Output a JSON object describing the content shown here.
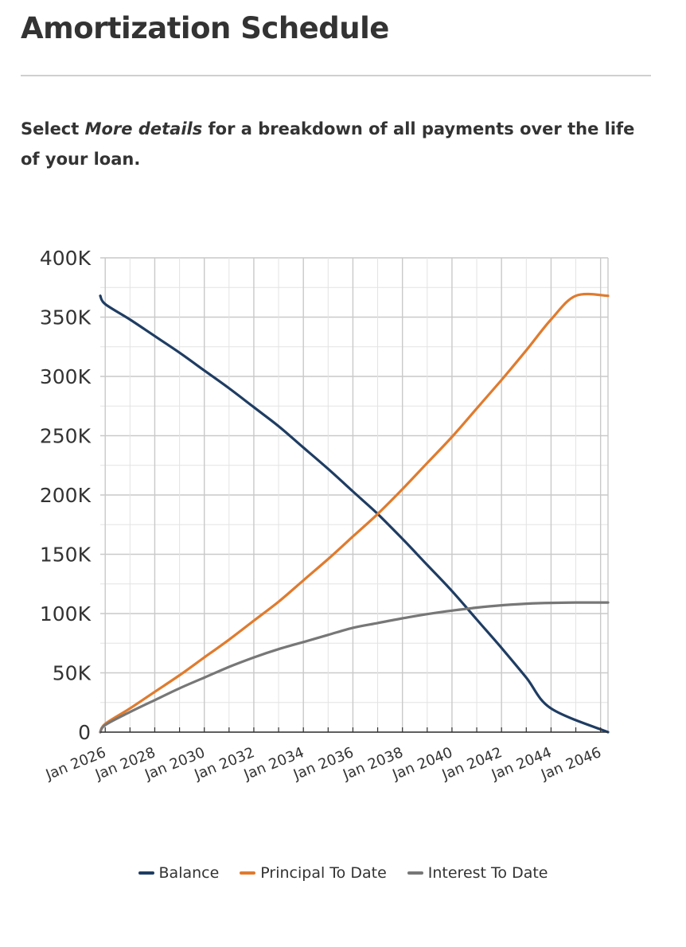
{
  "header": {
    "title": "Amortization Schedule"
  },
  "description": {
    "prefix": "Select ",
    "emphasis": "More details",
    "suffix": " for a breakdown of all payments over the life of your loan."
  },
  "chart_data": {
    "type": "line",
    "title": "",
    "xlabel": "",
    "ylabel": "",
    "x": [
      2025.8,
      2026,
      2027,
      2028,
      2029,
      2030,
      2031,
      2032,
      2033,
      2034,
      2035,
      2036,
      2037,
      2038,
      2039,
      2040,
      2041,
      2042,
      2043,
      2044,
      2045,
      2046
    ],
    "x_tick_labels": [
      "Jan 2026",
      "Jan 2028",
      "Jan 2030",
      "Jan 2032",
      "Jan 2034",
      "Jan 2036",
      "Jan 2038",
      "Jan 2040",
      "Jan 2042",
      "Jan 2044",
      "Jan 2046"
    ],
    "x_tick_values": [
      2026,
      2028,
      2030,
      2032,
      2034,
      2036,
      2038,
      2040,
      2042,
      2044,
      2046
    ],
    "xlim": [
      2025.8,
      2046.3
    ],
    "ylim": [
      0,
      400000
    ],
    "y_tick_values": [
      0,
      50000,
      100000,
      150000,
      200000,
      250000,
      300000,
      350000,
      400000
    ],
    "y_tick_labels": [
      "0",
      "50K",
      "100K",
      "150K",
      "200K",
      "250K",
      "300K",
      "350K",
      "400K"
    ],
    "grid": true,
    "legend_position": "bottom",
    "series": [
      {
        "name": "Balance",
        "color": "#1f3d63",
        "values": [
          368000,
          361000,
          348000,
          334000,
          320000,
          305000,
          290000,
          274000,
          258000,
          240000,
          222000,
          203000,
          184000,
          163000,
          141000,
          119000,
          95000,
          71000,
          46000,
          20000,
          0,
          0
        ]
      },
      {
        "name": "Principal To Date",
        "color": "#e07b2e",
        "values": [
          0,
          7000,
          20000,
          34000,
          48000,
          63000,
          78000,
          94000,
          110000,
          128000,
          146000,
          165000,
          184000,
          205000,
          227000,
          249000,
          273000,
          297000,
          322000,
          348000,
          368000,
          368000
        ]
      },
      {
        "name": "Interest To Date",
        "color": "#777777",
        "values": [
          0,
          6000,
          17000,
          27000,
          37000,
          46000,
          55000,
          63000,
          70000,
          76000,
          82000,
          88000,
          92000,
          96000,
          99500,
          102500,
          105000,
          107000,
          108300,
          109000,
          109300,
          109300
        ]
      }
    ]
  }
}
